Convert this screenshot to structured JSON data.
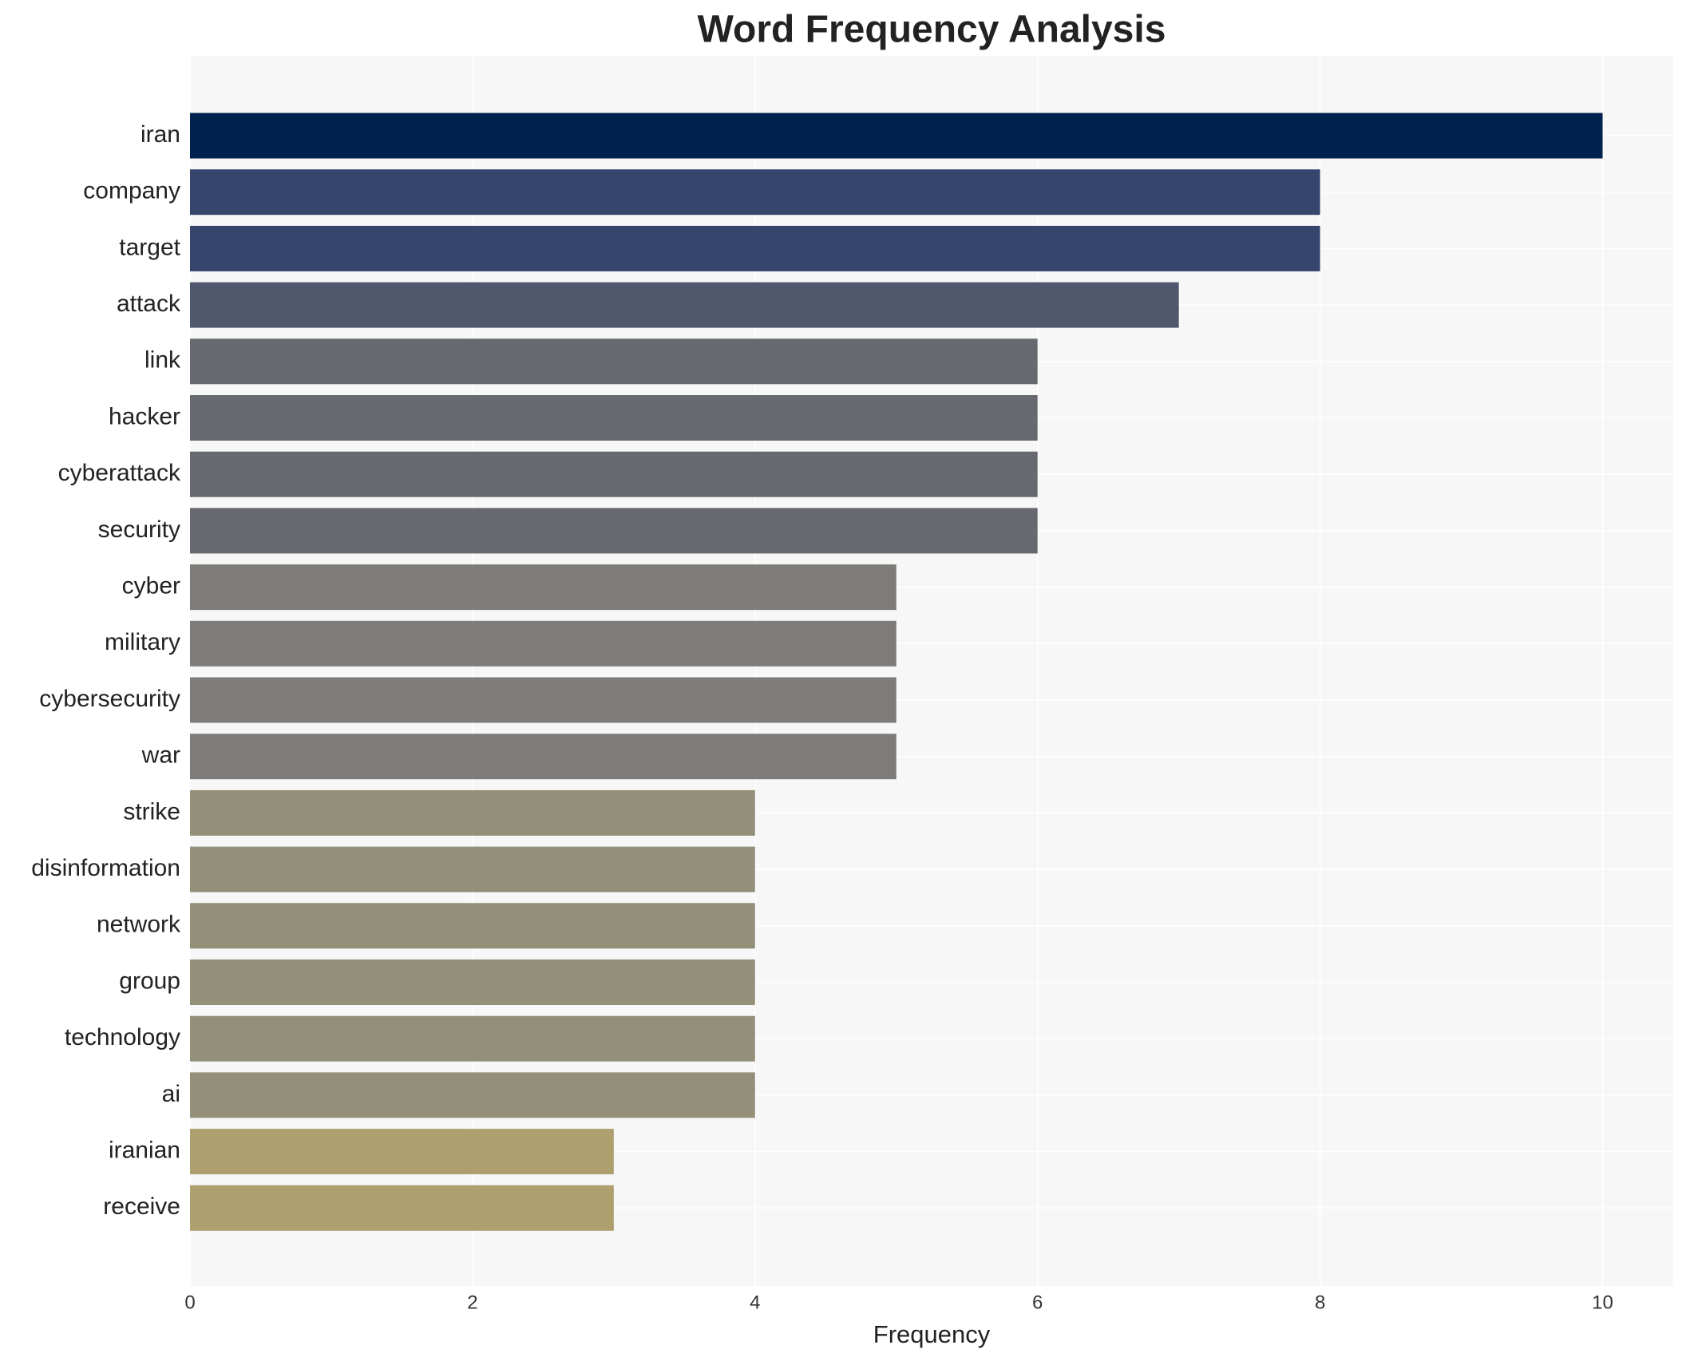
{
  "chart_data": {
    "type": "bar",
    "orientation": "horizontal",
    "title": "Word Frequency Analysis",
    "x_label": "Frequency",
    "categories": [
      "iran",
      "company",
      "target",
      "attack",
      "link",
      "hacker",
      "cyberattack",
      "security",
      "cyber",
      "military",
      "cybersecurity",
      "war",
      "strike",
      "disinformation",
      "network",
      "group",
      "technology",
      "ai",
      "iranian",
      "receive"
    ],
    "values": [
      10,
      8,
      8,
      7,
      6,
      6,
      6,
      6,
      5,
      5,
      5,
      5,
      4,
      4,
      4,
      4,
      4,
      4,
      3,
      3
    ],
    "colors": [
      "#00224e",
      "#35456c",
      "#35456c",
      "#4f586d",
      "#666970",
      "#666970",
      "#666970",
      "#666970",
      "#7d7c78",
      "#7d7c78",
      "#7d7c78",
      "#7d7c78",
      "#948f78",
      "#948f78",
      "#948f78",
      "#948f78",
      "#948f78",
      "#948f78",
      "#ae9f6e",
      "#ae9f6e"
    ],
    "xlim": [
      0,
      10.5
    ],
    "xticks": [
      0,
      2,
      4,
      6,
      8,
      10
    ],
    "grid": true
  }
}
